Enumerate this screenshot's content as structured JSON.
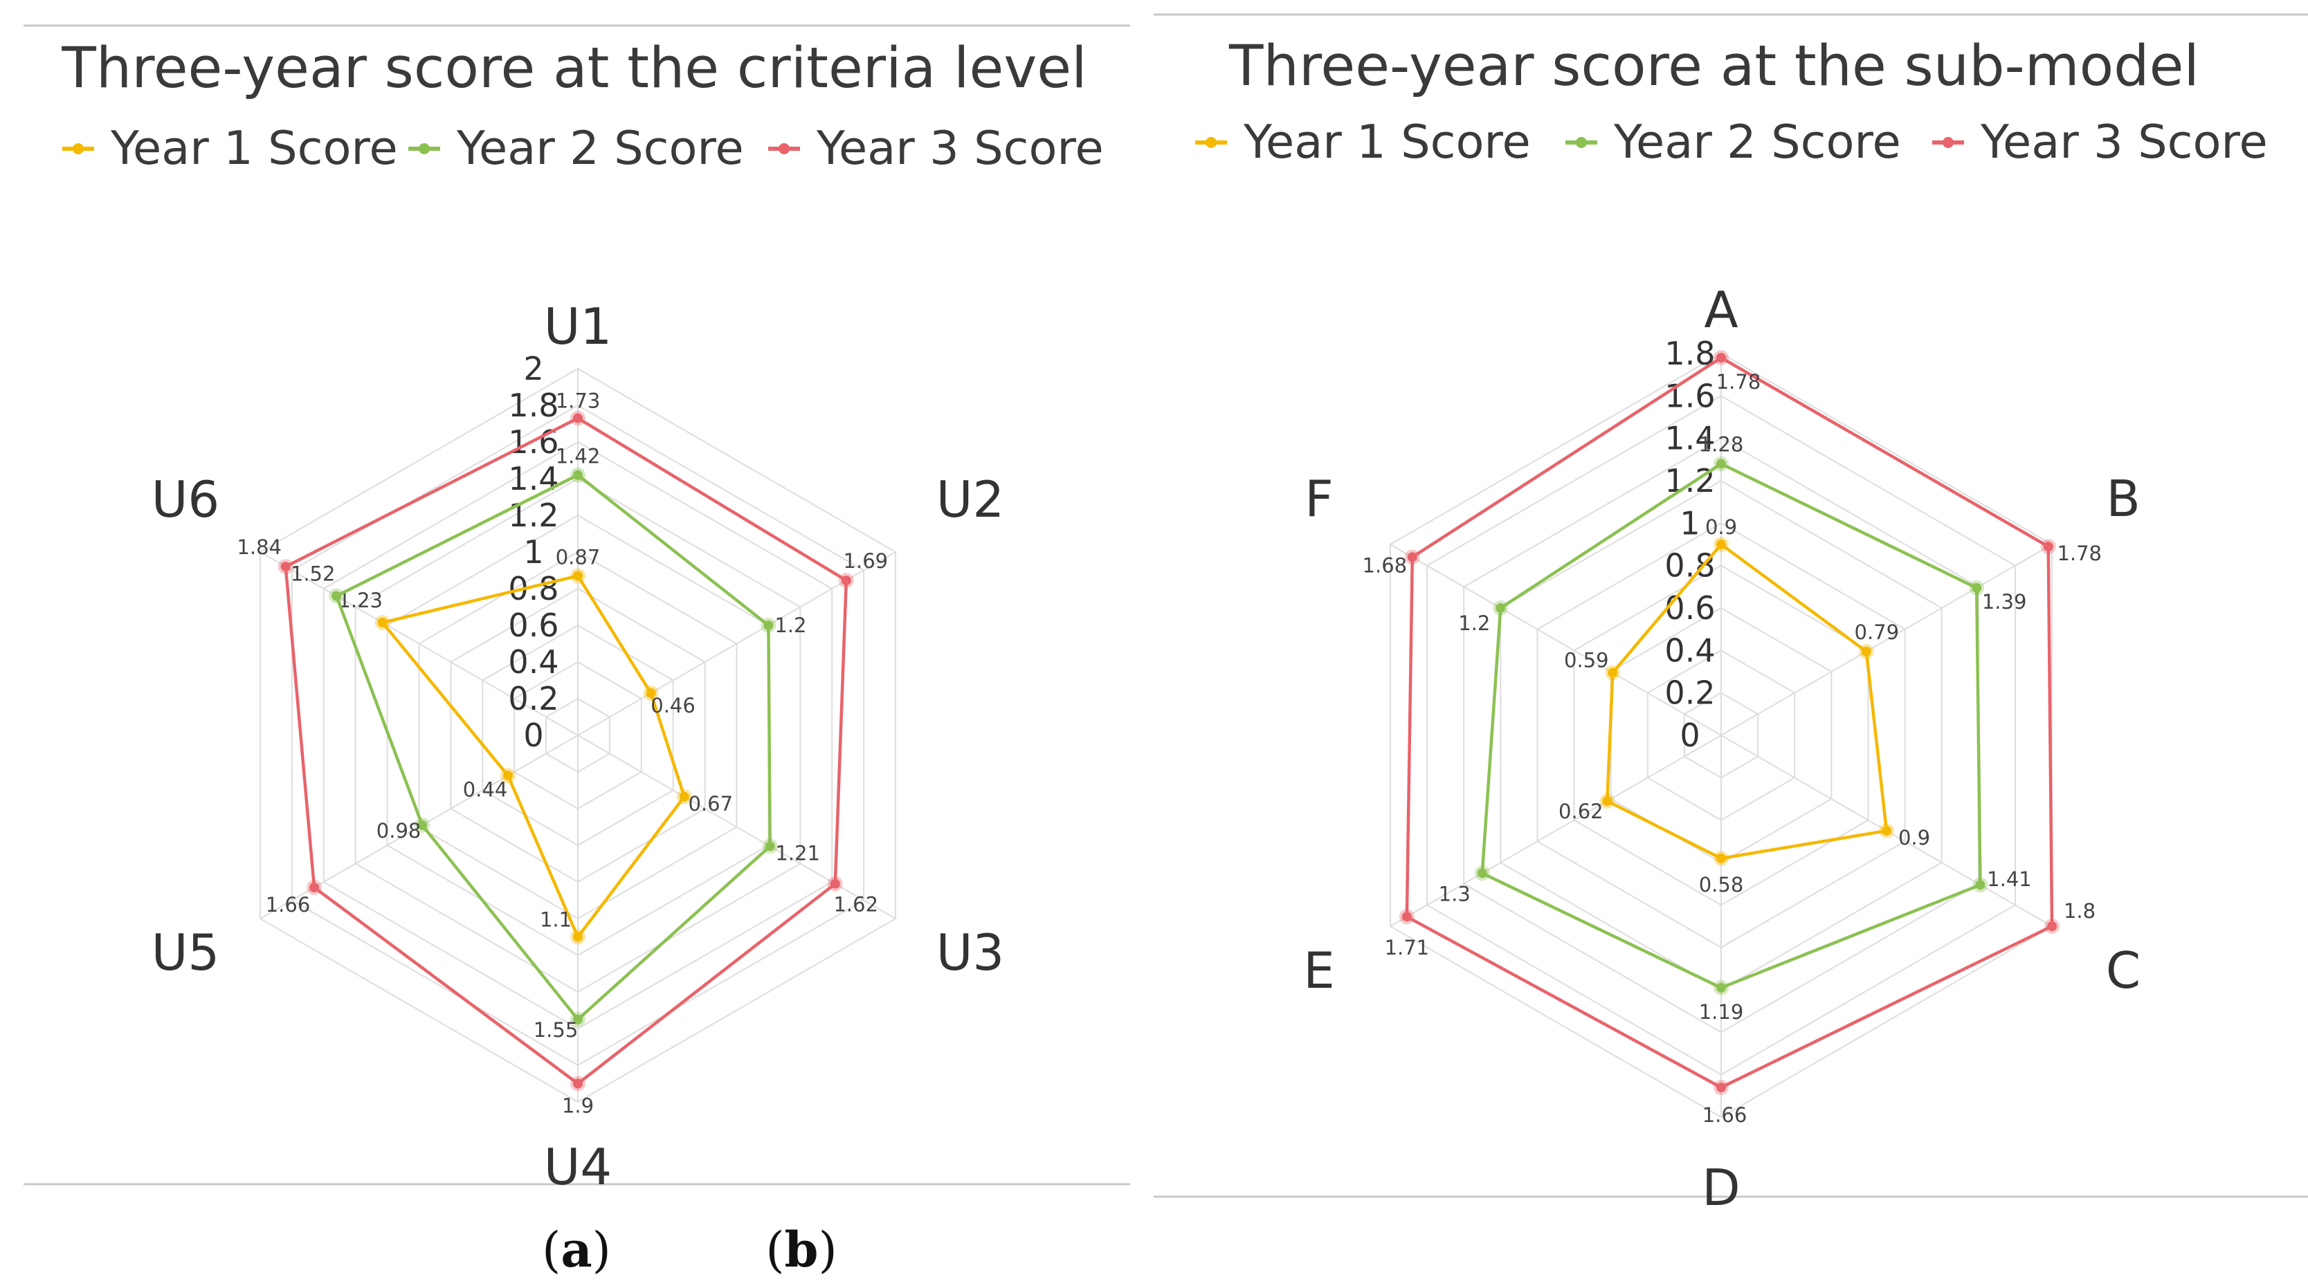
{
  "colors": {
    "year1": "#f5b800",
    "year2": "#8cc152",
    "year3": "#e8636b",
    "grid": "#dddddd",
    "rule": "#c8c8c8"
  },
  "captions": [
    {
      "open": "(",
      "letter": "a",
      "close": ")"
    },
    {
      "open": "(",
      "letter": "b",
      "close": ")"
    }
  ],
  "chart_data": [
    {
      "type": "radar",
      "title": "Three-year score at the criteria level",
      "categories": [
        "U1",
        "U2",
        "U3",
        "U4",
        "U5",
        "U6"
      ],
      "radial_range": [
        0,
        2
      ],
      "radial_ticks": [
        "0",
        "0.2",
        "0.4",
        "0.6",
        "0.8",
        "1",
        "1.2",
        "1.4",
        "1.6",
        "1.8",
        "2"
      ],
      "legend_position": "top",
      "series": [
        {
          "name": "Year 1 Score",
          "color_key": "year1",
          "values": [
            0.87,
            0.46,
            0.67,
            1.1,
            0.44,
            1.23
          ]
        },
        {
          "name": "Year 2 Score",
          "color_key": "year2",
          "values": [
            1.42,
            1.2,
            1.21,
            1.55,
            0.98,
            1.52
          ]
        },
        {
          "name": "Year 3 Score",
          "color_key": "year3",
          "values": [
            1.73,
            1.69,
            1.62,
            1.9,
            1.66,
            1.84
          ]
        }
      ],
      "data_labels": [
        [
          "0.87",
          "0.46",
          "0.67",
          "1.1",
          "0.44",
          "1.23"
        ],
        [
          "1.42",
          "1.2",
          "1.21",
          "1.55",
          "0.98",
          "1.52"
        ],
        [
          "1.73",
          "1.69",
          "1.62",
          "1.9",
          "1.66",
          "1.84"
        ]
      ]
    },
    {
      "type": "radar",
      "title": "Three-year score at the sub-model",
      "categories": [
        "A",
        "B",
        "C",
        "D",
        "E",
        "F"
      ],
      "radial_range": [
        0,
        1.8
      ],
      "radial_ticks": [
        "0",
        "0.2",
        "0.4",
        "0.6",
        "0.8",
        "1",
        "1.2",
        "1.4",
        "1.6",
        "1.8"
      ],
      "legend_position": "top",
      "series": [
        {
          "name": "Year 1 Score",
          "color_key": "year1",
          "values": [
            0.9,
            0.79,
            0.9,
            0.58,
            0.62,
            0.59
          ]
        },
        {
          "name": "Year 2 Score",
          "color_key": "year2",
          "values": [
            1.28,
            1.39,
            1.41,
            1.19,
            1.3,
            1.2
          ]
        },
        {
          "name": "Year 3 Score",
          "color_key": "year3",
          "values": [
            1.78,
            1.78,
            1.8,
            1.66,
            1.71,
            1.68
          ]
        }
      ],
      "data_labels": [
        [
          "0.9",
          "0.79",
          "0.9",
          "0.58",
          "0.62",
          "0.59"
        ],
        [
          "1.28",
          "1.39",
          "1.41",
          "1.19",
          "1.3",
          "1.2"
        ],
        [
          "1.78",
          "1.78",
          "1.8",
          "1.66",
          "1.71",
          "1.68"
        ]
      ]
    }
  ]
}
